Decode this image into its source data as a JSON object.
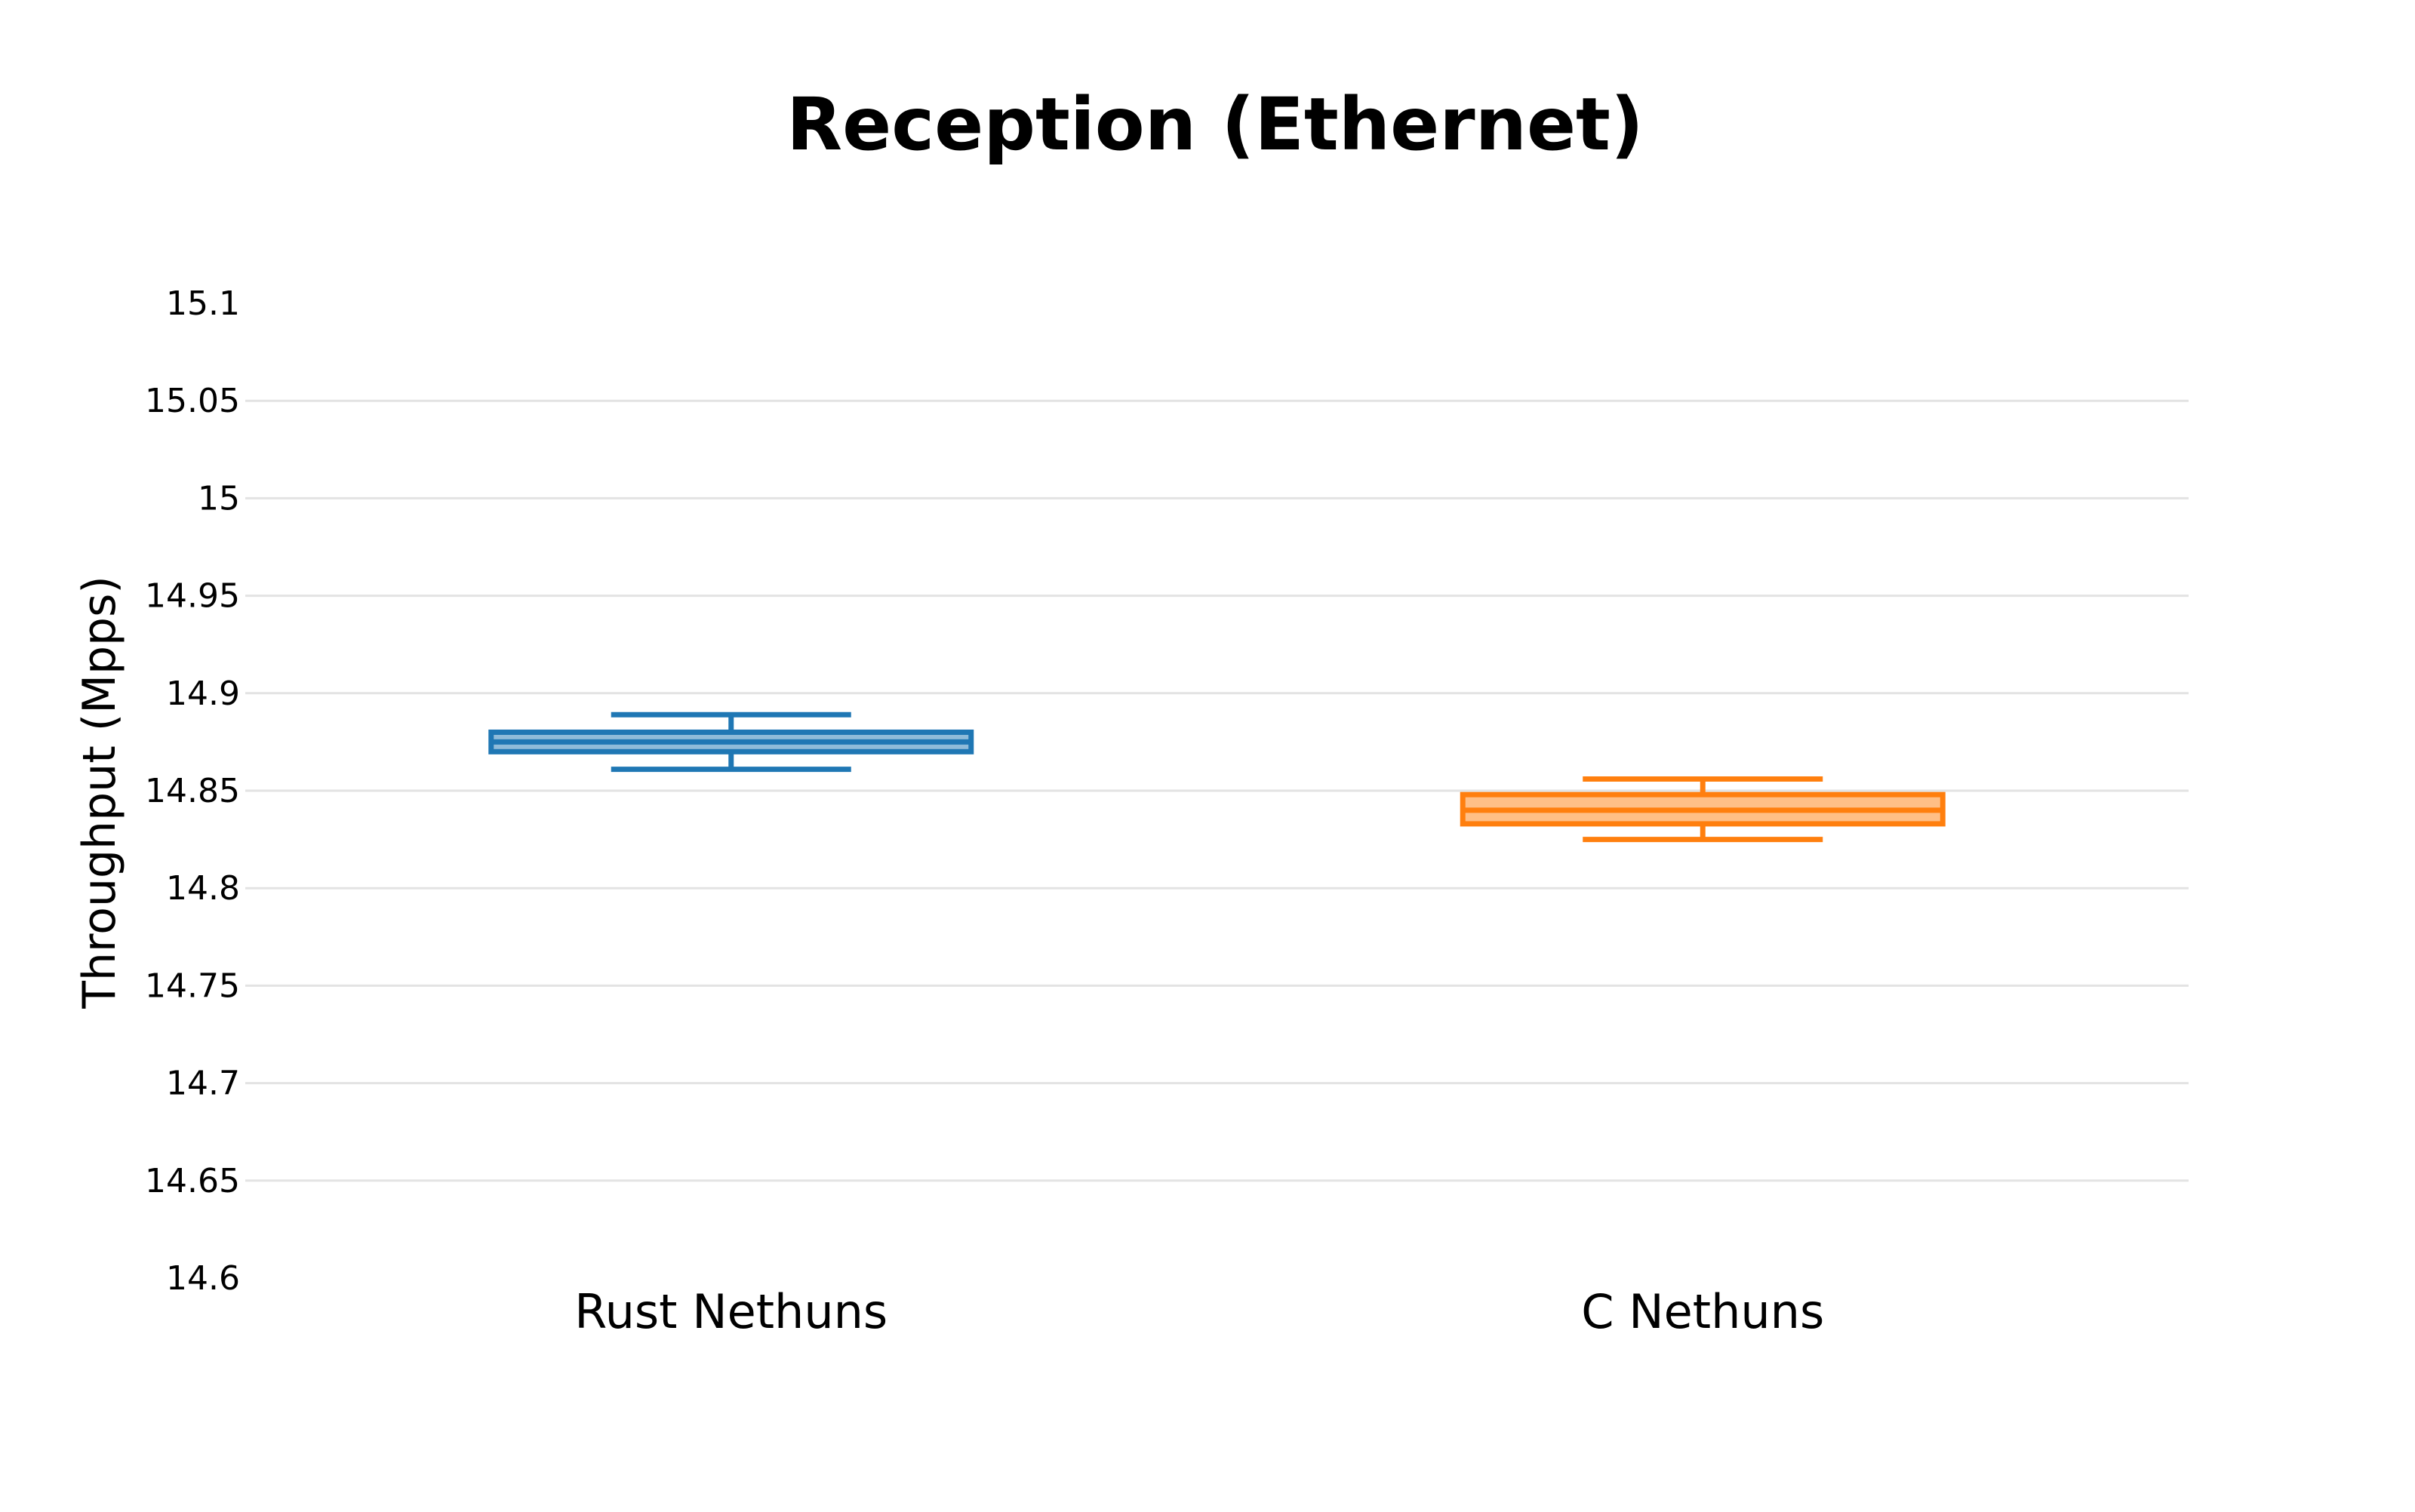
{
  "chart_data": {
    "type": "box",
    "title": "Reception (Ethernet)",
    "xlabel": "",
    "ylabel": "Throughput (Mpps)",
    "ylim": [
      14.6,
      15.1
    ],
    "y_ticks": [
      "14.6",
      "14.65",
      "14.7",
      "14.75",
      "14.8",
      "14.85",
      "14.9",
      "14.95",
      "15",
      "15.05",
      "15.1"
    ],
    "grid": true,
    "legend": "none",
    "categories": [
      "Rust Nethuns",
      "C Nethuns"
    ],
    "series": [
      {
        "category": "Rust Nethuns",
        "color": "#1f77b4",
        "fill": "#8fbbd9",
        "min": 14.861,
        "q1": 14.87,
        "median": 14.875,
        "q3": 14.88,
        "max": 14.889
      },
      {
        "category": "C Nethuns",
        "color": "#ff7f0e",
        "fill": "#ffbf86",
        "min": 14.825,
        "q1": 14.833,
        "median": 14.84,
        "q3": 14.848,
        "max": 14.856
      }
    ]
  }
}
